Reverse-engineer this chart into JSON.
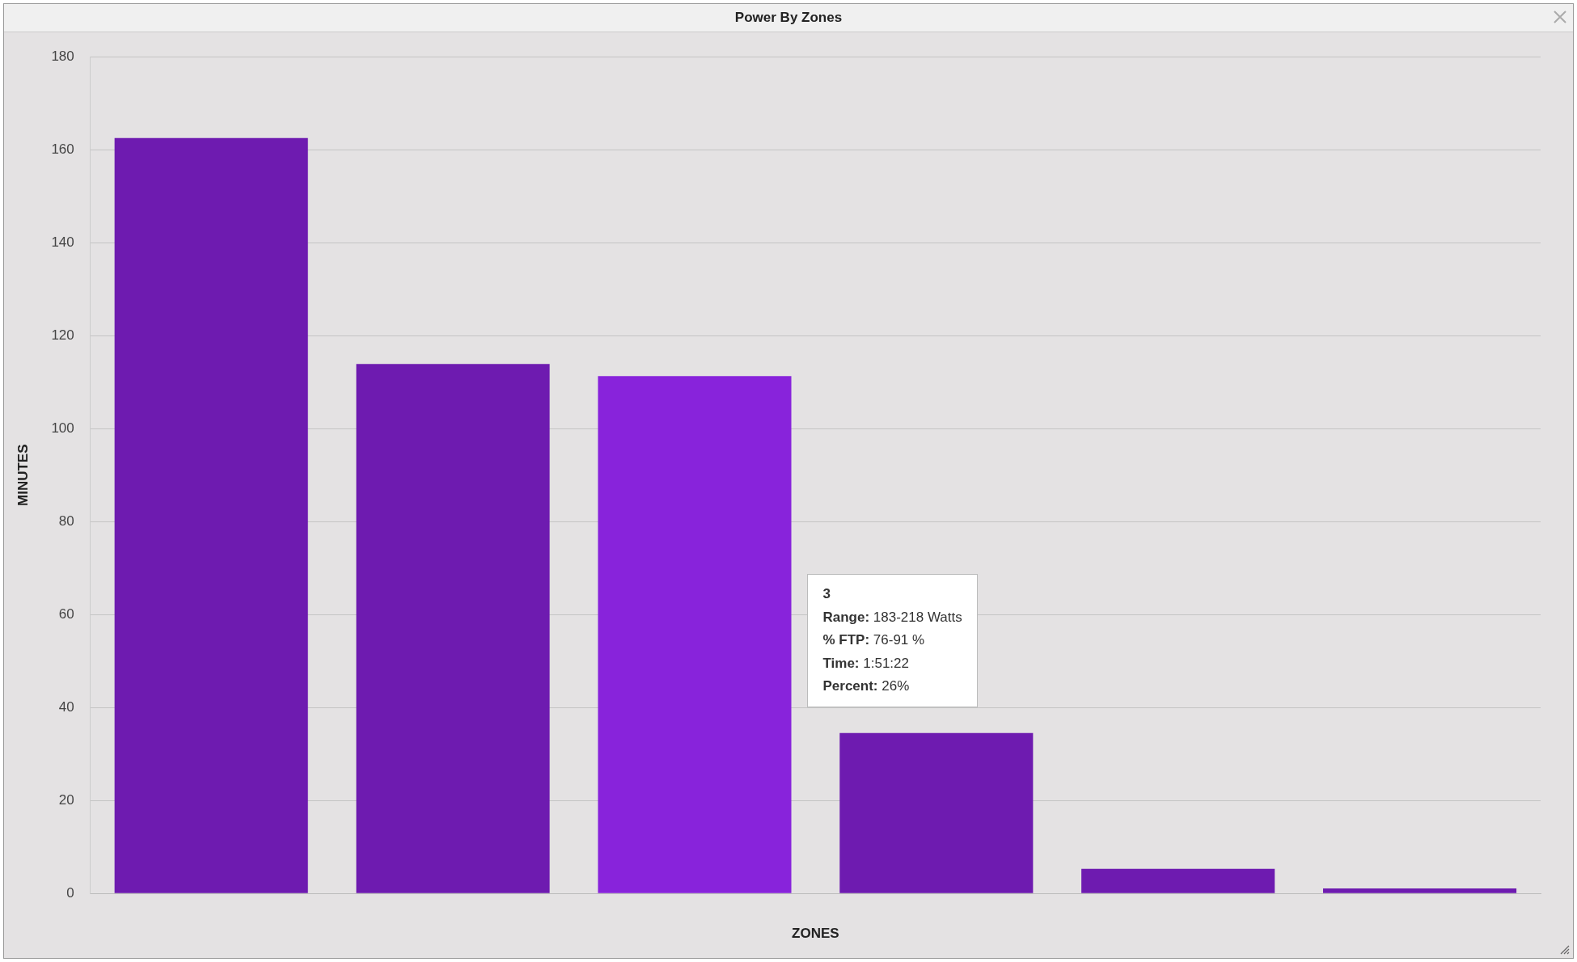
{
  "chart_data": {
    "type": "bar",
    "title": "Power By Zones",
    "xlabel": "ZONES",
    "ylabel": "MINUTES",
    "categories": [
      null,
      null,
      null,
      null,
      null,
      null
    ],
    "values": [
      162.5,
      113.9,
      111.3,
      34.5,
      5.3,
      1.1
    ],
    "colors": [
      "#6e1bb0",
      "#6e1bb0",
      "#8823db",
      "#6e1bb0",
      "#6e1bb0",
      "#6e1bb0"
    ],
    "ylim": [
      0,
      180
    ],
    "yticks": [
      0,
      20,
      40,
      60,
      80,
      100,
      120,
      140,
      160,
      180
    ],
    "grid": "y",
    "legend": false,
    "annotations": [
      "3",
      "Range: 183-218 Watts",
      "% FTP: 76-91 %",
      "Time: 1:51:22",
      "Percent: 26%"
    ]
  }
}
